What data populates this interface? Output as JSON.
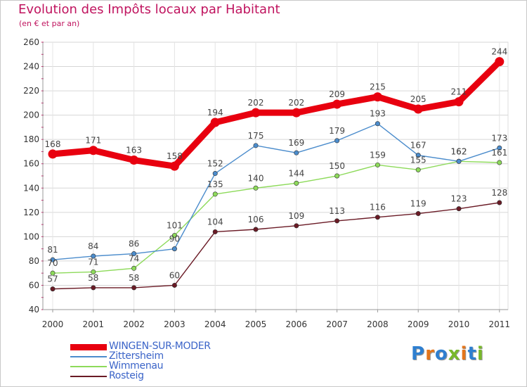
{
  "title": "Evolution des Impôts locaux par Habitant",
  "subtitle": "(en € et par an)",
  "logo_text": "Proxiti",
  "logo_colors": [
    "#2e7fd0",
    "#e4751b",
    "#2e7fd0",
    "#78b82a",
    "#e4751b",
    "#2e7fd0",
    "#78b82a"
  ],
  "chart_data": {
    "type": "line",
    "categories": [
      "2000",
      "2001",
      "2002",
      "2003",
      "2004",
      "2005",
      "2006",
      "2007",
      "2008",
      "2009",
      "2010",
      "2011"
    ],
    "ylim": [
      40,
      260
    ],
    "yticks": [
      "40",
      "60",
      "80",
      "100",
      "120",
      "140",
      "160",
      "180",
      "200",
      "220",
      "240",
      "260"
    ],
    "series": [
      {
        "name": "WINGEN-SUR-MODER",
        "color": "#e8000f",
        "values": [
          168,
          171,
          163,
          158,
          194,
          202,
          202,
          209,
          215,
          205,
          211,
          244
        ],
        "labels": [
          "168",
          "171",
          "163",
          "158",
          "194",
          "202",
          "202",
          "209",
          "215",
          "205",
          "211",
          "244"
        ]
      },
      {
        "name": "Zittersheim",
        "color": "#4b8ccc",
        "values": [
          81,
          84,
          86,
          90,
          152,
          175,
          169,
          179,
          193,
          167,
          162,
          173
        ],
        "labels": [
          "81",
          "84",
          "86",
          "90",
          "152",
          "175",
          "169",
          "179",
          "193",
          "167",
          "162",
          "173"
        ]
      },
      {
        "name": "Wimmenau",
        "color": "#8dda5a",
        "values": [
          70,
          71,
          74,
          101,
          135,
          140,
          144,
          150,
          159,
          155,
          162,
          161
        ],
        "labels": [
          "70",
          "71",
          "74",
          "101",
          "135",
          "140",
          "144",
          "150",
          "159",
          "155",
          "162",
          "161"
        ]
      },
      {
        "name": "Rosteig",
        "color": "#6a1a25",
        "values": [
          57,
          58,
          58,
          60,
          104,
          106,
          109,
          113,
          116,
          119,
          123,
          128
        ],
        "labels": [
          "57",
          "58",
          "58",
          "60",
          "104",
          "106",
          "109",
          "113",
          "116",
          "119",
          "123",
          "128"
        ]
      }
    ],
    "legend": [
      "WINGEN-SUR-MODER",
      "Zittersheim",
      "Wimmenau",
      "Rosteig"
    ],
    "legend_position": "bottom-left",
    "grid": true
  }
}
